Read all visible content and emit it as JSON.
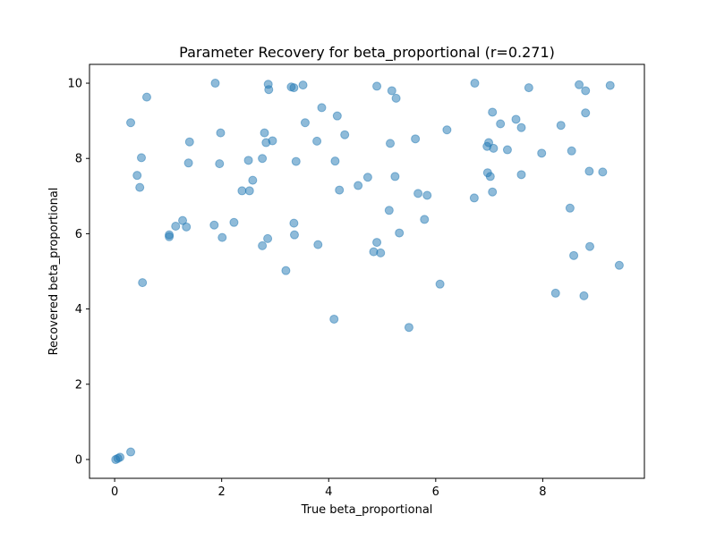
{
  "chart_data": {
    "type": "scatter",
    "title": "Parameter Recovery for beta_proportional (r=0.271)",
    "xlabel": "True beta_proportional",
    "ylabel": "Recovered beta_proportional",
    "xlim": [
      -0.47,
      9.9
    ],
    "ylim": [
      -0.5,
      10.5
    ],
    "xticks": [
      0,
      2,
      4,
      6,
      8
    ],
    "yticks": [
      0,
      2,
      4,
      6,
      8,
      10
    ],
    "grid": false,
    "marker_color": "#1f77b4",
    "marker_alpha": 0.5,
    "points": [
      {
        "x": 0.02,
        "y": 0.0
      },
      {
        "x": 0.06,
        "y": 0.03
      },
      {
        "x": 0.1,
        "y": 0.06
      },
      {
        "x": 0.3,
        "y": 0.2
      },
      {
        "x": 0.3,
        "y": 8.95
      },
      {
        "x": 0.42,
        "y": 7.55
      },
      {
        "x": 0.47,
        "y": 7.23
      },
      {
        "x": 0.5,
        "y": 8.02
      },
      {
        "x": 0.52,
        "y": 4.7
      },
      {
        "x": 0.6,
        "y": 9.63
      },
      {
        "x": 1.02,
        "y": 5.97
      },
      {
        "x": 1.02,
        "y": 5.92
      },
      {
        "x": 1.14,
        "y": 6.2
      },
      {
        "x": 1.27,
        "y": 6.35
      },
      {
        "x": 1.34,
        "y": 6.18
      },
      {
        "x": 1.38,
        "y": 7.88
      },
      {
        "x": 1.4,
        "y": 8.44
      },
      {
        "x": 1.86,
        "y": 6.23
      },
      {
        "x": 1.88,
        "y": 10.0
      },
      {
        "x": 1.96,
        "y": 7.86
      },
      {
        "x": 1.98,
        "y": 8.68
      },
      {
        "x": 2.01,
        "y": 5.9
      },
      {
        "x": 2.23,
        "y": 6.3
      },
      {
        "x": 2.38,
        "y": 7.14
      },
      {
        "x": 2.5,
        "y": 7.95
      },
      {
        "x": 2.52,
        "y": 7.14
      },
      {
        "x": 2.58,
        "y": 7.42
      },
      {
        "x": 2.76,
        "y": 8.0
      },
      {
        "x": 2.76,
        "y": 5.68
      },
      {
        "x": 2.8,
        "y": 8.68
      },
      {
        "x": 2.83,
        "y": 8.42
      },
      {
        "x": 2.86,
        "y": 5.87
      },
      {
        "x": 2.87,
        "y": 9.97
      },
      {
        "x": 2.88,
        "y": 9.83
      },
      {
        "x": 2.95,
        "y": 8.47
      },
      {
        "x": 3.2,
        "y": 5.02
      },
      {
        "x": 3.3,
        "y": 9.9
      },
      {
        "x": 3.35,
        "y": 9.88
      },
      {
        "x": 3.35,
        "y": 6.28
      },
      {
        "x": 3.36,
        "y": 5.97
      },
      {
        "x": 3.39,
        "y": 7.92
      },
      {
        "x": 3.52,
        "y": 9.95
      },
      {
        "x": 3.56,
        "y": 8.95
      },
      {
        "x": 3.78,
        "y": 8.46
      },
      {
        "x": 3.8,
        "y": 5.71
      },
      {
        "x": 3.87,
        "y": 9.35
      },
      {
        "x": 4.1,
        "y": 3.73
      },
      {
        "x": 4.12,
        "y": 7.93
      },
      {
        "x": 4.16,
        "y": 9.13
      },
      {
        "x": 4.2,
        "y": 7.16
      },
      {
        "x": 4.3,
        "y": 8.63
      },
      {
        "x": 4.55,
        "y": 7.28
      },
      {
        "x": 4.73,
        "y": 7.5
      },
      {
        "x": 4.84,
        "y": 5.52
      },
      {
        "x": 4.9,
        "y": 5.77
      },
      {
        "x": 4.9,
        "y": 9.92
      },
      {
        "x": 4.97,
        "y": 5.49
      },
      {
        "x": 5.13,
        "y": 6.62
      },
      {
        "x": 5.15,
        "y": 8.4
      },
      {
        "x": 5.18,
        "y": 9.8
      },
      {
        "x": 5.24,
        "y": 7.52
      },
      {
        "x": 5.26,
        "y": 9.6
      },
      {
        "x": 5.32,
        "y": 6.02
      },
      {
        "x": 5.5,
        "y": 3.51
      },
      {
        "x": 5.62,
        "y": 8.52
      },
      {
        "x": 5.67,
        "y": 7.07
      },
      {
        "x": 5.79,
        "y": 6.38
      },
      {
        "x": 5.84,
        "y": 7.02
      },
      {
        "x": 6.08,
        "y": 4.66
      },
      {
        "x": 6.21,
        "y": 8.76
      },
      {
        "x": 6.72,
        "y": 6.95
      },
      {
        "x": 6.73,
        "y": 10.0
      },
      {
        "x": 6.96,
        "y": 8.32
      },
      {
        "x": 6.97,
        "y": 7.62
      },
      {
        "x": 6.99,
        "y": 8.42
      },
      {
        "x": 7.02,
        "y": 7.52
      },
      {
        "x": 7.06,
        "y": 9.23
      },
      {
        "x": 7.06,
        "y": 7.11
      },
      {
        "x": 7.08,
        "y": 8.27
      },
      {
        "x": 7.21,
        "y": 8.92
      },
      {
        "x": 7.34,
        "y": 8.23
      },
      {
        "x": 7.5,
        "y": 9.04
      },
      {
        "x": 7.6,
        "y": 8.82
      },
      {
        "x": 7.6,
        "y": 7.57
      },
      {
        "x": 7.74,
        "y": 9.88
      },
      {
        "x": 7.98,
        "y": 8.14
      },
      {
        "x": 8.24,
        "y": 4.42
      },
      {
        "x": 8.34,
        "y": 8.88
      },
      {
        "x": 8.51,
        "y": 6.68
      },
      {
        "x": 8.54,
        "y": 8.2
      },
      {
        "x": 8.58,
        "y": 5.42
      },
      {
        "x": 8.68,
        "y": 9.96
      },
      {
        "x": 8.77,
        "y": 4.35
      },
      {
        "x": 8.8,
        "y": 9.8
      },
      {
        "x": 8.8,
        "y": 9.21
      },
      {
        "x": 8.87,
        "y": 7.66
      },
      {
        "x": 8.88,
        "y": 5.66
      },
      {
        "x": 9.12,
        "y": 7.64
      },
      {
        "x": 9.26,
        "y": 9.94
      },
      {
        "x": 9.43,
        "y": 5.16
      }
    ]
  }
}
